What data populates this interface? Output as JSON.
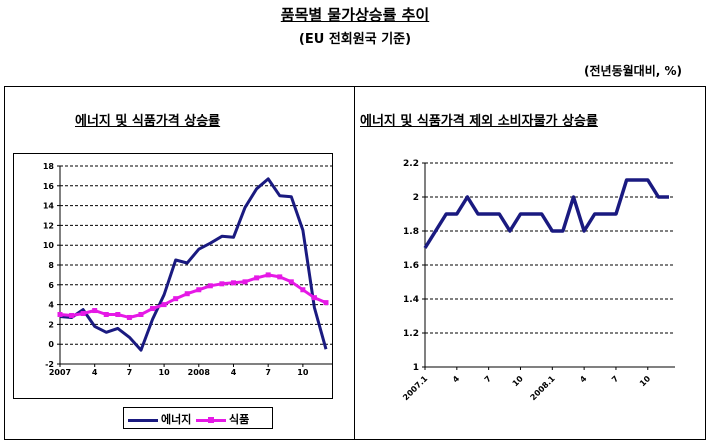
{
  "header": {
    "title": "품목별 물가상승률 추이",
    "subtitle": "(EU 전회원국 기준)",
    "unit": "(전년동월대비, %)"
  },
  "chart_data": [
    {
      "type": "line",
      "title": "에너지 및 식품가격 상승률",
      "x_tick_labels": [
        "2007",
        "4",
        "7",
        "10",
        "2008",
        "4",
        "7",
        "10"
      ],
      "x_tick_index": [
        0,
        3,
        6,
        9,
        12,
        15,
        18,
        21
      ],
      "ylim": [
        -2,
        18
      ],
      "yticks": [
        -2,
        0,
        2,
        4,
        6,
        8,
        10,
        12,
        14,
        16,
        18
      ],
      "grid": "dashed-horizontal",
      "legend": "bottom",
      "series": [
        {
          "name": "에너지",
          "color": "#1a1a80",
          "marker": "none",
          "values": [
            2.8,
            2.7,
            3.5,
            1.8,
            1.2,
            1.6,
            0.7,
            -0.6,
            2.5,
            5.0,
            8.5,
            8.2,
            9.6,
            10.2,
            10.9,
            10.8,
            13.8,
            15.7,
            16.7,
            15.0,
            14.9,
            11.5,
            3.7,
            -0.5
          ]
        },
        {
          "name": "식품",
          "color": "#e619e6",
          "marker": "square",
          "values": [
            3.0,
            2.9,
            3.1,
            3.4,
            3.0,
            3.0,
            2.7,
            3.0,
            3.6,
            4.0,
            4.6,
            5.1,
            5.5,
            5.9,
            6.1,
            6.2,
            6.3,
            6.7,
            7.0,
            6.8,
            6.3,
            5.5,
            4.7,
            4.2
          ]
        }
      ]
    },
    {
      "type": "line",
      "title": "에너지 및 식품가격 제외 소비자물가 상승률",
      "x_tick_labels": [
        "2007.1",
        "4",
        "7",
        "10",
        "2008.1",
        "4",
        "7",
        "10"
      ],
      "x_tick_index": [
        0,
        3,
        6,
        9,
        12,
        15,
        18,
        21
      ],
      "ylim": [
        1,
        2.2
      ],
      "yticks": [
        1,
        1.2,
        1.4,
        1.6,
        1.8,
        2,
        2.2
      ],
      "grid": "dashed-horizontal",
      "series": [
        {
          "color": "#1a1a80",
          "values": [
            1.7,
            1.8,
            1.9,
            1.9,
            2.0,
            1.9,
            1.9,
            1.9,
            1.8,
            1.9,
            1.9,
            1.9,
            1.8,
            1.8,
            2.0,
            1.8,
            1.9,
            1.9,
            1.9,
            2.1,
            2.1,
            2.1,
            2.0,
            2.0
          ]
        }
      ]
    }
  ]
}
